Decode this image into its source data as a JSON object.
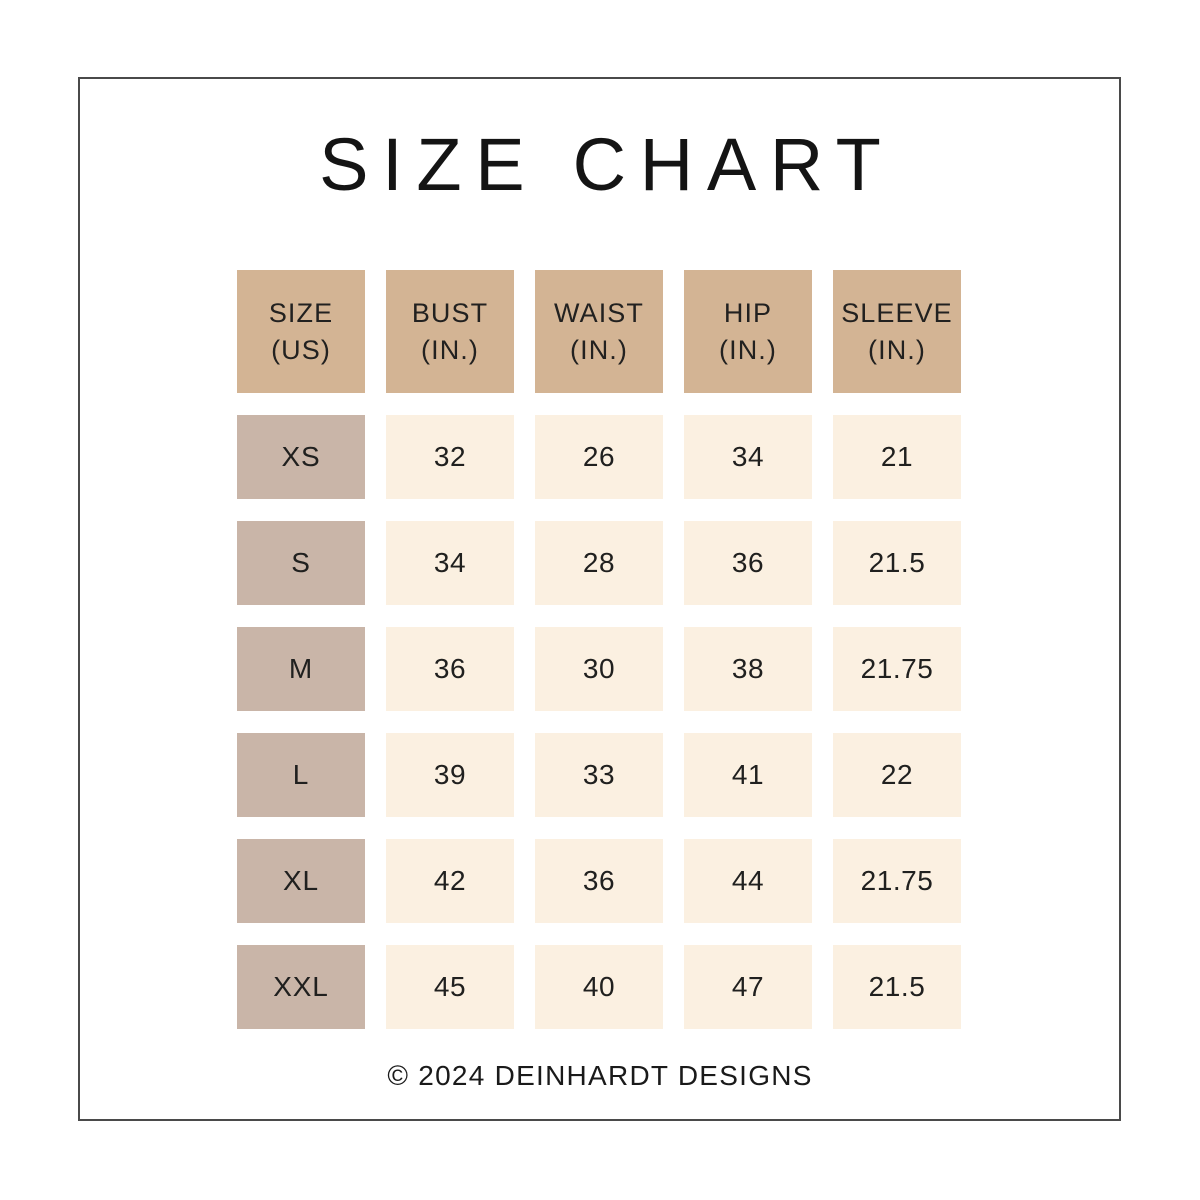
{
  "title": "SIZE CHART",
  "footer": "© 2024 DEINHARDT DESIGNS",
  "colors": {
    "background": "#ffffff",
    "frame_border": "#4a4a4a",
    "header_cell_bg": "#d3b494",
    "size_cell_bg": "#c9b5a8",
    "value_cell_bg": "#fbf0e1",
    "text": "#1f1f1f"
  },
  "chart_data": {
    "type": "table",
    "title": "SIZE CHART",
    "columns": [
      "SIZE (US)",
      "BUST (IN.)",
      "WAIST (IN.)",
      "HIP (IN.)",
      "SLEEVE (IN.)"
    ],
    "rows": [
      [
        "XS",
        "32",
        "26",
        "34",
        "21"
      ],
      [
        "S",
        "34",
        "28",
        "36",
        "21.5"
      ],
      [
        "M",
        "36",
        "30",
        "38",
        "21.75"
      ],
      [
        "L",
        "39",
        "33",
        "41",
        "22"
      ],
      [
        "XL",
        "42",
        "36",
        "44",
        "21.75"
      ],
      [
        "XXL",
        "45",
        "40",
        "47",
        "21.5"
      ]
    ]
  },
  "table": {
    "headers": [
      {
        "l1": "SIZE",
        "l2": "(US)"
      },
      {
        "l1": "BUST",
        "l2": "(IN.)"
      },
      {
        "l1": "WAIST",
        "l2": "(IN.)"
      },
      {
        "l1": "HIP",
        "l2": "(IN.)"
      },
      {
        "l1": "SLEEVE",
        "l2": "(IN.)"
      }
    ],
    "rows": [
      {
        "size": "XS",
        "bust": "32",
        "waist": "26",
        "hip": "34",
        "sleeve": "21"
      },
      {
        "size": "S",
        "bust": "34",
        "waist": "28",
        "hip": "36",
        "sleeve": "21.5"
      },
      {
        "size": "M",
        "bust": "36",
        "waist": "30",
        "hip": "38",
        "sleeve": "21.75"
      },
      {
        "size": "L",
        "bust": "39",
        "waist": "33",
        "hip": "41",
        "sleeve": "22"
      },
      {
        "size": "XL",
        "bust": "42",
        "waist": "36",
        "hip": "44",
        "sleeve": "21.75"
      },
      {
        "size": "XXL",
        "bust": "45",
        "waist": "40",
        "hip": "47",
        "sleeve": "21.5"
      }
    ]
  }
}
